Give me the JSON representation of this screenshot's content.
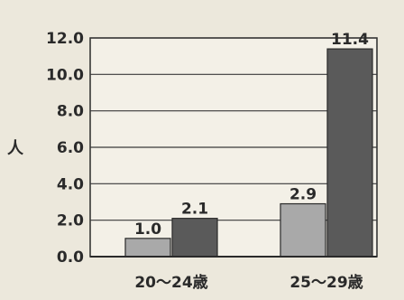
{
  "chart_data": {
    "type": "bar",
    "title": "",
    "xlabel": "",
    "ylabel": "人",
    "ylim": [
      0,
      12
    ],
    "yticks": [
      "0.0",
      "2.0",
      "4.0",
      "6.0",
      "8.0",
      "10.0",
      "12.0"
    ],
    "categories": [
      "20〜24歳",
      "25〜29歳"
    ],
    "series": [
      {
        "values": [
          1.0,
          2.9
        ],
        "labels": [
          "1.0",
          "2.9"
        ],
        "color": "#a9a9a9"
      },
      {
        "values": [
          2.1,
          11.4
        ],
        "labels": [
          "2.1",
          "11.4"
        ],
        "color": "#5a5a5a"
      }
    ],
    "grid": true,
    "legend": "none"
  }
}
